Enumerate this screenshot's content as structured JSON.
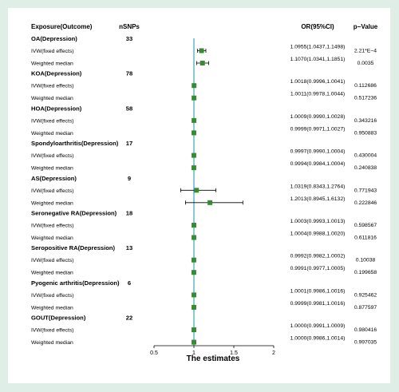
{
  "chart_data": {
    "type": "forest",
    "headers": {
      "exposure": "Exposure(Outcome)",
      "nsnps": "nSNPs",
      "or": "OR(95%CI)",
      "p": "p−Value"
    },
    "xlabel": "The estimates",
    "xlim": [
      0.5,
      2
    ],
    "xticks": [
      "0.5",
      "1",
      "1.5",
      "2"
    ],
    "reference_line": 1,
    "colors": {
      "marker": "#3a8a33",
      "reference_line": "#48b0b8",
      "ci": "#000000"
    },
    "groups": [
      {
        "name": "OA(Depression)",
        "nsnps": "33",
        "rows": [
          {
            "method": "IVW(fixed effects)",
            "or": 1.0955,
            "lo": 1.0437,
            "hi": 1.1498,
            "ci_text": "1.0955(1.0437,1.1498)",
            "p": "2.21*E−4"
          },
          {
            "method": "Weighted median",
            "or": 1.107,
            "lo": 1.0341,
            "hi": 1.1851,
            "ci_text": "1.1070(1.0341,1.1851)",
            "p": "0.0035"
          }
        ]
      },
      {
        "name": "KOA(Depression)",
        "nsnps": "78",
        "rows": [
          {
            "method": "IVW(fixed effects)",
            "or": 1.0018,
            "lo": 0.9996,
            "hi": 1.0041,
            "ci_text": "1.0018(0.9996,1.0041)",
            "p": "0.112686"
          },
          {
            "method": "Weighted median",
            "or": 1.0011,
            "lo": 0.9978,
            "hi": 1.0044,
            "ci_text": "1.0011(0.9978,1.0044)",
            "p": "0.517236"
          }
        ]
      },
      {
        "name": "HOA(Depression)",
        "nsnps": "58",
        "rows": [
          {
            "method": "IVW(fixed effects)",
            "or": 1.0009,
            "lo": 0.999,
            "hi": 1.0028,
            "ci_text": "1.0009(0.9990,1.0028)",
            "p": "0.343216"
          },
          {
            "method": "Weighted median",
            "or": 0.9999,
            "lo": 0.9971,
            "hi": 1.0027,
            "ci_text": "0.9999(0.9971,1.0027)",
            "p": "0.950883"
          }
        ]
      },
      {
        "name": "Spondyloarthritis(Depression)",
        "nsnps": "17",
        "rows": [
          {
            "method": "IVW(fixed effects)",
            "or": 0.9997,
            "lo": 0.999,
            "hi": 1.0004,
            "ci_text": "0.9997(0.9990,1.0004)",
            "p": "0.430004"
          },
          {
            "method": "Weighted median",
            "or": 0.9994,
            "lo": 0.9984,
            "hi": 1.0004,
            "ci_text": "0.9994(0.9984,1.0004)",
            "p": "0.240838"
          }
        ]
      },
      {
        "name": "AS(Depression)",
        "nsnps": "9",
        "rows": [
          {
            "method": "IVW(fixed effects)",
            "or": 1.0319,
            "lo": 0.8343,
            "hi": 1.2764,
            "ci_text": "1.0319(0.8343,1.2764)",
            "p": "0.771943"
          },
          {
            "method": "Weighted median",
            "or": 1.2013,
            "lo": 0.8945,
            "hi": 1.6132,
            "ci_text": "1.2013(0.8945,1.6132)",
            "p": "0.222846"
          }
        ]
      },
      {
        "name": "Seronegative RA(Depression)",
        "nsnps": "18",
        "rows": [
          {
            "method": "IVW(fixed effects)",
            "or": 1.0003,
            "lo": 0.9993,
            "hi": 1.0013,
            "ci_text": "1.0003(0.9993,1.0013)",
            "p": "0.598567"
          },
          {
            "method": "Weighted median",
            "or": 1.0004,
            "lo": 0.9988,
            "hi": 1.002,
            "ci_text": "1.0004(0.9988,1.0020)",
            "p": "0.611816"
          }
        ]
      },
      {
        "name": "Seropositive RA(Depression)",
        "nsnps": "13",
        "rows": [
          {
            "method": "IVW(fixed effects)",
            "or": 0.9992,
            "lo": 0.9982,
            "hi": 1.0002,
            "ci_text": "0.9992(0.9982,1.0002)",
            "p": "0.10038"
          },
          {
            "method": "Weighted median",
            "or": 0.9991,
            "lo": 0.9977,
            "hi": 1.0005,
            "ci_text": "0.9991(0.9977,1.0005)",
            "p": "0.199658"
          }
        ]
      },
      {
        "name": "Pyogenic arthritis(Depression)",
        "nsnps": "6",
        "rows": [
          {
            "method": "IVW(fixed effects)",
            "or": 1.0001,
            "lo": 0.9986,
            "hi": 1.0016,
            "ci_text": "1.0001(0.9986,1.0016)",
            "p": "0.925462"
          },
          {
            "method": "Weighted median",
            "or": 0.9999,
            "lo": 0.9981,
            "hi": 1.0016,
            "ci_text": "0.9999(0.9981,1.0016)",
            "p": "0.877597"
          }
        ]
      },
      {
        "name": "GOUT(Depression)",
        "nsnps": "22",
        "rows": [
          {
            "method": "IVW(fixed effects)",
            "or": 1.0,
            "lo": 0.9991,
            "hi": 1.0009,
            "ci_text": "1.0000(0.9991,1.0009)",
            "p": "0.980416"
          },
          {
            "method": "Weighted median",
            "or": 1.0,
            "lo": 0.9986,
            "hi": 1.0014,
            "ci_text": "1.0000(0.9986,1.0014)",
            "p": "0.997035"
          }
        ]
      }
    ]
  }
}
